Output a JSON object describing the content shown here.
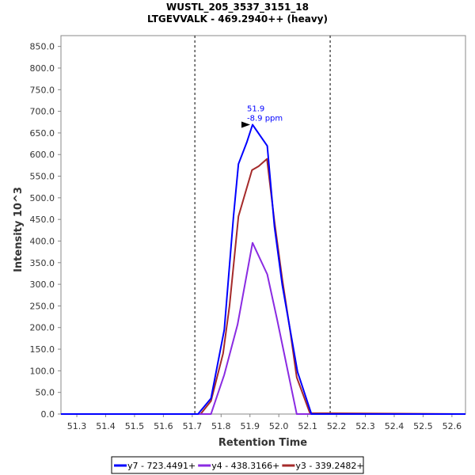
{
  "chart_data": {
    "type": "line",
    "title": "WUSTL_205_3537_3151_18",
    "subtitle": "LTGEVVALK - 469.2940++ (heavy)",
    "xlabel": "Retention Time",
    "ylabel": "Intensity 10^3",
    "xlim": [
      51.245,
      52.647
    ],
    "ylim": [
      0,
      875
    ],
    "xticks": [
      "51.3",
      "51.4",
      "51.5",
      "51.6",
      "51.7",
      "51.8",
      "51.9",
      "52.0",
      "52.1",
      "52.2",
      "52.3",
      "52.4",
      "52.5",
      "52.6"
    ],
    "yticks": [
      "0.0",
      "50.0",
      "100.0",
      "150.0",
      "200.0",
      "250.0",
      "300.0",
      "350.0",
      "400.0",
      "450.0",
      "500.0",
      "550.0",
      "600.0",
      "650.0",
      "700.0",
      "750.0",
      "800.0",
      "850.0"
    ],
    "grid": false,
    "legend_position": "bottom",
    "boundaries": [
      51.709,
      52.178
    ],
    "annotation": {
      "x": 51.909,
      "y": 669,
      "line1": "51.9",
      "line2": "-8.9 ppm"
    },
    "series": [
      {
        "name": "y7 - 723.4491+",
        "color": "#0000ff",
        "x": [
          51.245,
          51.72,
          51.765,
          51.811,
          51.843,
          51.86,
          51.889,
          51.909,
          51.96,
          51.985,
          52.012,
          52.065,
          52.113,
          52.647
        ],
        "y": [
          0,
          0,
          36,
          195,
          458,
          578,
          628,
          669,
          620,
          433,
          298,
          97,
          0,
          0
        ]
      },
      {
        "name": "y4 - 438.3166+",
        "color": "#8a2be2",
        "x": [
          51.245,
          51.765,
          51.811,
          51.857,
          51.909,
          51.96,
          51.994,
          52.062,
          52.647
        ],
        "y": [
          0,
          0,
          91,
          207,
          396,
          323,
          219,
          0,
          0
        ]
      },
      {
        "name": "y3 - 339.2482+",
        "color": "#a52a2a",
        "x": [
          51.245,
          51.729,
          51.765,
          51.807,
          51.829,
          51.86,
          51.907,
          51.93,
          51.959,
          51.985,
          52.012,
          52.04,
          52.062,
          52.108,
          52.647
        ],
        "y": [
          0,
          0,
          30,
          140,
          250,
          457,
          564,
          573,
          590,
          445,
          311,
          189,
          85,
          2,
          0
        ]
      }
    ]
  }
}
